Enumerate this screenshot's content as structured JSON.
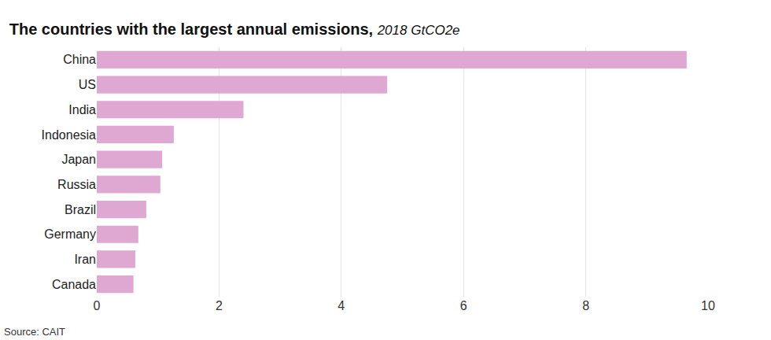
{
  "chart_data": {
    "type": "bar",
    "orientation": "horizontal",
    "title": "The countries with the largest annual emissions,",
    "subtitle": "2018 GtCO2e",
    "annotations": [
      "Source: CAIT"
    ],
    "categories": [
      "China",
      "US",
      "India",
      "Indonesia",
      "Japan",
      "Russia",
      "Brazil",
      "Germany",
      "Iran",
      "Canada"
    ],
    "values": [
      9.65,
      4.75,
      2.4,
      1.26,
      1.07,
      1.04,
      0.81,
      0.68,
      0.63,
      0.6
    ],
    "color": "#dea8d3",
    "xlim": [
      0,
      10
    ],
    "xticks": [
      0,
      2,
      4,
      6,
      8,
      10
    ],
    "grid": true
  }
}
